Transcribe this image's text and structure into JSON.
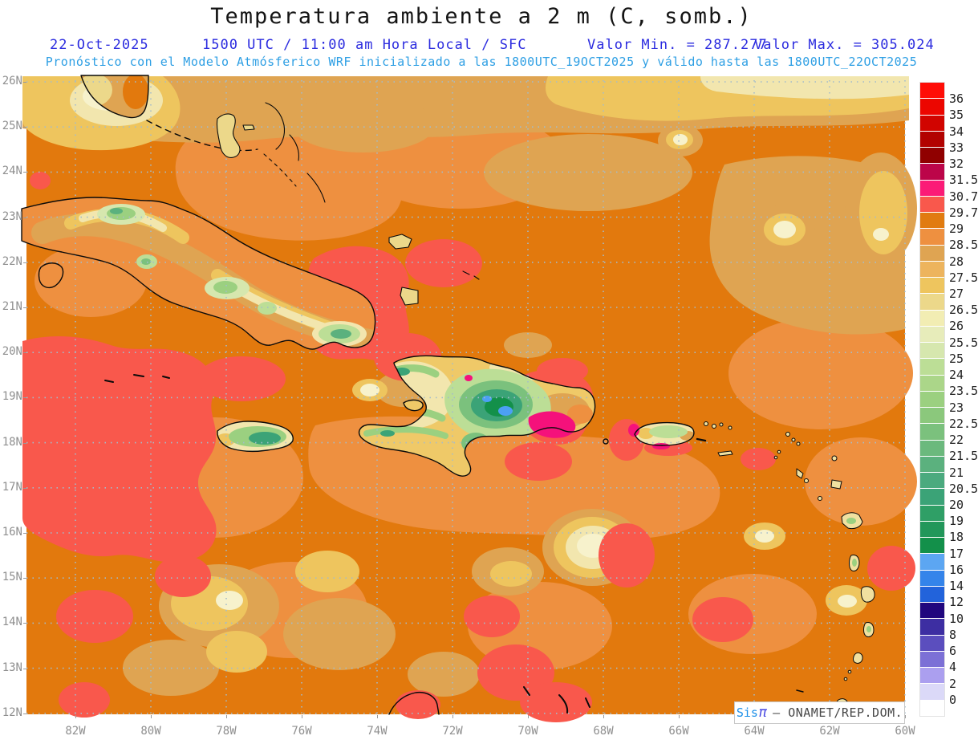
{
  "header": {
    "title": "Temperatura ambiente a 2 m (C, somb.)",
    "date": "22-Oct-2025",
    "run_info": "1500 UTC / 11:00 am Hora Local / SFC",
    "min_value_label": "Valor Min. = 287.277",
    "max_value_label": "Valor Max. = 305.024",
    "model_info": "Pronóstico con el Modelo Atmósferico WRF inicializado a las 1800UTC_19OCT2025 y válido hasta las  1800UTC_22OCT2025",
    "colors": {
      "subtitle_blue": "#2B2BDF",
      "model_info_cyan": "#2E9FE4"
    }
  },
  "axes": {
    "lat_labels": [
      "26N",
      "25N",
      "24N",
      "23N",
      "22N",
      "21N",
      "20N",
      "19N",
      "18N",
      "17N",
      "16N",
      "15N",
      "14N",
      "13N",
      "12N"
    ],
    "lon_labels": [
      "82W",
      "80W",
      "78W",
      "76W",
      "74W",
      "72W",
      "70W",
      "68W",
      "66W",
      "64W",
      "62W",
      "60W"
    ]
  },
  "colorbar": {
    "tick_labels": [
      "36",
      "35",
      "34",
      "33",
      "32",
      "31.5",
      "30.7",
      "29.7",
      "29",
      "28.5",
      "28",
      "27.5",
      "27",
      "26.5",
      "26",
      "25.5",
      "25",
      "24",
      "23.5",
      "23",
      "22.5",
      "22",
      "21.5",
      "21",
      "20.5",
      "20",
      "19",
      "18",
      "17",
      "16",
      "14",
      "12",
      "10",
      "8",
      "6",
      "4",
      "2",
      "0"
    ],
    "cell_colors": [
      "#FF0D07",
      "#EC0600",
      "#D10400",
      "#B20200",
      "#900000",
      "#BC0549",
      "#FB1B77",
      "#F9584C",
      "#E17B10",
      "#EE9040",
      "#DFA452",
      "#EDB45D",
      "#EEC55E",
      "#ECD88A",
      "#F2EDB3",
      "#E7ECBA",
      "#D6E7AE",
      "#BCDE96",
      "#ABD689",
      "#9BD080",
      "#8BC87C",
      "#7BC17D",
      "#6BB97D",
      "#5BB17E",
      "#4BAA7E",
      "#3BA377",
      "#2F9F66",
      "#22975A",
      "#13904A",
      "#5CA6F2",
      "#3484EA",
      "#2263DB",
      "#21077E",
      "#3D2EA2",
      "#5B4EBE",
      "#7C70D6",
      "#AB9FEF",
      "#DBD9F8",
      "#FFFFFF"
    ]
  },
  "watermark": {
    "brand": "Sis",
    "pi": "π",
    "credit": "–  ONAMET/REP.DOM."
  },
  "chart_data": {
    "type": "heatmap",
    "title": "Temperatura ambiente a 2 m (C, somb.)",
    "valid": "1500 UTC 22-Oct-2025",
    "value_min": 287.277,
    "value_max": 305.024,
    "lat_range": [
      "12N",
      "26N"
    ],
    "lon_range": [
      "83.3W",
      "60W"
    ],
    "legend_levels": [
      0,
      2,
      4,
      6,
      8,
      10,
      12,
      14,
      16,
      17,
      18,
      19,
      20,
      20.5,
      21,
      21.5,
      22,
      22.5,
      23,
      23.5,
      24,
      25,
      25.5,
      26,
      26.5,
      27,
      27.5,
      28,
      28.5,
      29,
      29.7,
      30.7,
      31.5,
      32,
      33,
      34,
      35,
      36
    ],
    "legend_position": "right",
    "grid": true
  }
}
